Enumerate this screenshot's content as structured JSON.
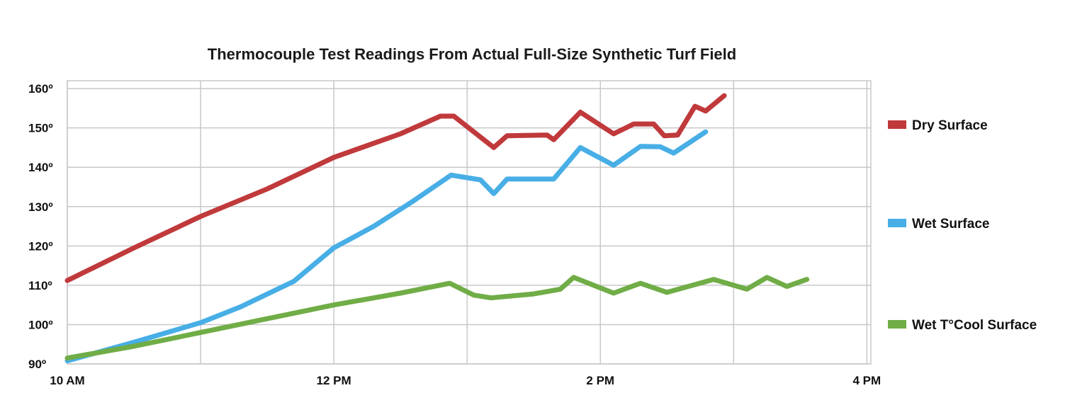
{
  "chart_data": {
    "type": "line",
    "title": "Thermocouple Test Readings From Actual Full-Size Synthetic Turf Field",
    "xlabel": "",
    "ylabel": "",
    "x_unit": "hours",
    "xlim": [
      10,
      16.03
    ],
    "ylim": [
      90,
      162
    ],
    "x_ticks": [
      {
        "value": 10,
        "label": "10 AM"
      },
      {
        "value": 12,
        "label": "12 PM"
      },
      {
        "value": 14,
        "label": "2 PM"
      },
      {
        "value": 16,
        "label": "4 PM"
      }
    ],
    "y_ticks": [
      {
        "value": 90,
        "label": "90º"
      },
      {
        "value": 100,
        "label": "100º"
      },
      {
        "value": 110,
        "label": "110º"
      },
      {
        "value": 120,
        "label": "120º"
      },
      {
        "value": 130,
        "label": "130º"
      },
      {
        "value": 140,
        "label": "140º"
      },
      {
        "value": 150,
        "label": "150º"
      },
      {
        "value": 160,
        "label": "160º"
      }
    ],
    "x_gridlines": [
      10,
      11,
      12,
      13,
      14,
      15,
      16
    ],
    "grid": true,
    "legend_position": "right",
    "series": [
      {
        "name": "Dry Surface",
        "color": "#c0393b",
        "points": [
          [
            10.0,
            111.2
          ],
          [
            10.5,
            119.5
          ],
          [
            11.0,
            127.5
          ],
          [
            11.5,
            134.5
          ],
          [
            12.0,
            142.5
          ],
          [
            12.5,
            148.5
          ],
          [
            12.8,
            153.0
          ],
          [
            12.9,
            153.0
          ],
          [
            13.2,
            145.0
          ],
          [
            13.3,
            148.0
          ],
          [
            13.6,
            148.2
          ],
          [
            13.65,
            147.0
          ],
          [
            13.85,
            154.0
          ],
          [
            14.1,
            148.5
          ],
          [
            14.25,
            151.0
          ],
          [
            14.4,
            151.0
          ],
          [
            14.48,
            148.0
          ],
          [
            14.58,
            148.2
          ],
          [
            14.71,
            155.5
          ],
          [
            14.79,
            154.3
          ],
          [
            14.93,
            158.2
          ]
        ]
      },
      {
        "name": "Wet Surface",
        "color": "#48aee6",
        "points": [
          [
            10.0,
            90.8
          ],
          [
            10.5,
            95.5
          ],
          [
            11.0,
            100.5
          ],
          [
            11.3,
            104.5
          ],
          [
            11.7,
            111.0
          ],
          [
            12.0,
            119.5
          ],
          [
            12.3,
            125.0
          ],
          [
            12.6,
            131.5
          ],
          [
            12.88,
            138.0
          ],
          [
            13.1,
            136.8
          ],
          [
            13.2,
            133.3
          ],
          [
            13.3,
            137.0
          ],
          [
            13.65,
            137.0
          ],
          [
            13.85,
            145.0
          ],
          [
            14.1,
            140.5
          ],
          [
            14.3,
            145.3
          ],
          [
            14.45,
            145.2
          ],
          [
            14.55,
            143.6
          ],
          [
            14.79,
            149.0
          ]
        ]
      },
      {
        "name": "Wet T°Cool Surface",
        "color": "#70ad47",
        "points": [
          [
            10.0,
            91.5
          ],
          [
            10.5,
            94.5
          ],
          [
            11.0,
            98.0
          ],
          [
            11.5,
            101.5
          ],
          [
            12.0,
            105.0
          ],
          [
            12.5,
            108.0
          ],
          [
            12.87,
            110.5
          ],
          [
            13.05,
            107.5
          ],
          [
            13.18,
            106.8
          ],
          [
            13.5,
            107.8
          ],
          [
            13.7,
            109.0
          ],
          [
            13.8,
            112.0
          ],
          [
            14.1,
            108.0
          ],
          [
            14.3,
            110.5
          ],
          [
            14.5,
            108.2
          ],
          [
            14.85,
            111.5
          ],
          [
            15.1,
            109.0
          ],
          [
            15.25,
            112.0
          ],
          [
            15.4,
            109.7
          ],
          [
            15.55,
            111.5
          ]
        ]
      }
    ]
  }
}
